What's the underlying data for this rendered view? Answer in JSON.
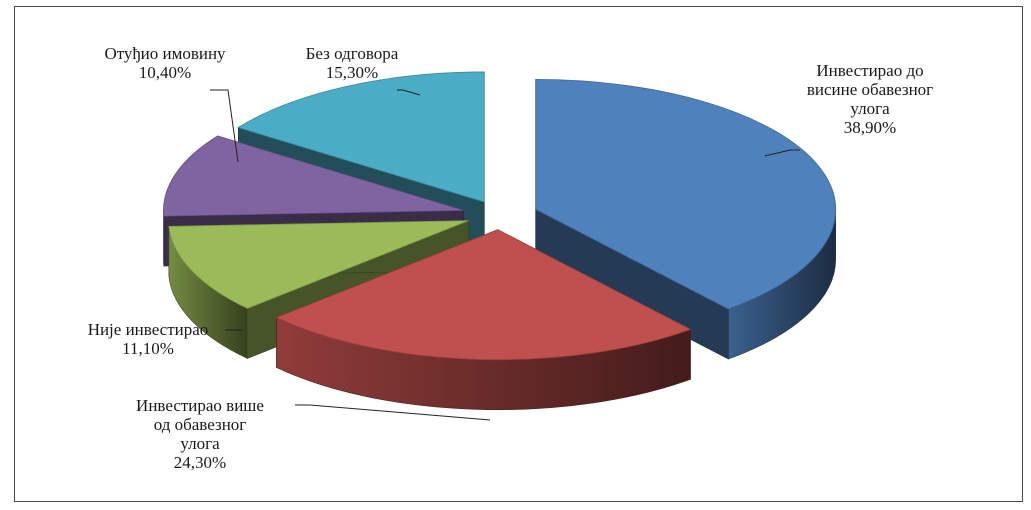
{
  "chart_data": {
    "type": "pie",
    "style": "3d-exploded",
    "title": "",
    "slices": [
      {
        "label_lines": [
          "Инвестирао до",
          "висине обавезног",
          "улога"
        ],
        "pct_text": "38,90%",
        "value": 38.9,
        "color": "#4f81bd"
      },
      {
        "label_lines": [
          "Инвестирао више",
          "од обавезног",
          "улога"
        ],
        "pct_text": "24,30%",
        "value": 24.3,
        "color": "#c0504d"
      },
      {
        "label_lines": [
          "Није инвестирао"
        ],
        "pct_text": "11,10%",
        "value": 11.1,
        "color": "#9bbb59"
      },
      {
        "label_lines": [
          "Отуђио имовину"
        ],
        "pct_text": "10,40%",
        "value": 10.4,
        "color": "#8064a2"
      },
      {
        "label_lines": [
          "Без одговора"
        ],
        "pct_text": "15,30%",
        "value": 15.3,
        "color": "#4bacc6"
      }
    ]
  }
}
